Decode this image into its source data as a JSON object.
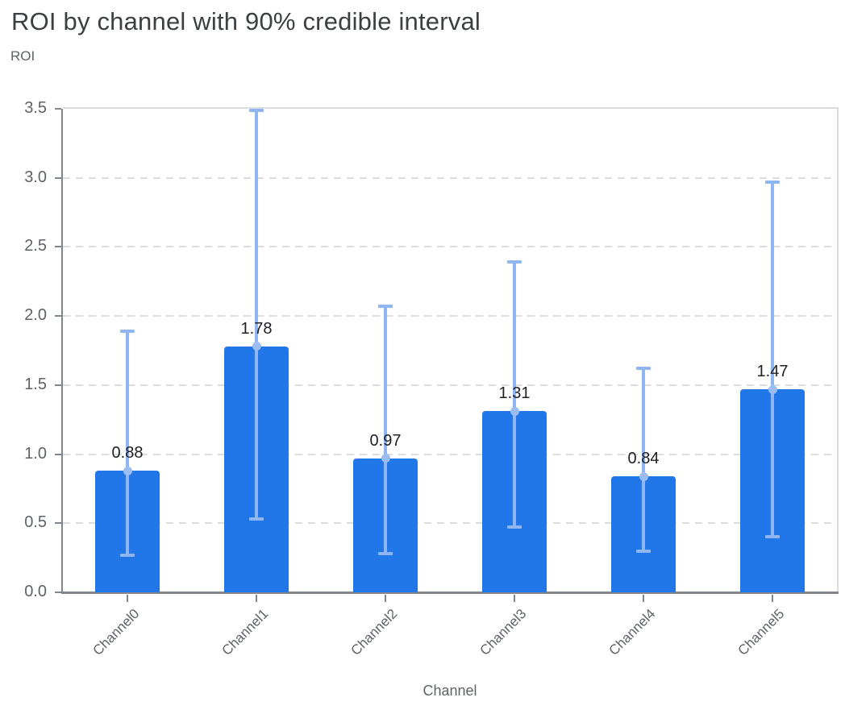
{
  "chart_data": {
    "type": "bar",
    "title": "ROI by channel with 90% credible interval",
    "ylabel": "ROI",
    "xlabel": "Channel",
    "categories": [
      "Channel0",
      "Channel1",
      "Channel2",
      "Channel3",
      "Channel4",
      "Channel5"
    ],
    "series": [
      {
        "name": "ROI",
        "values": [
          0.88,
          1.78,
          0.97,
          1.31,
          0.84,
          1.47
        ]
      }
    ],
    "value_labels": [
      "0.88",
      "1.78",
      "0.97",
      "1.31",
      "0.84",
      "1.47"
    ],
    "error_bars": {
      "label": "90% credible interval",
      "low": [
        0.27,
        0.53,
        0.28,
        0.47,
        0.3,
        0.4
      ],
      "high": [
        1.89,
        3.49,
        2.07,
        2.39,
        1.62,
        2.97
      ]
    },
    "ylim": [
      0,
      3.5
    ],
    "yticks": [
      0.0,
      0.5,
      1.0,
      1.5,
      2.0,
      2.5,
      3.0,
      3.5
    ],
    "ytick_labels": [
      "0.0",
      "0.5",
      "1.0",
      "1.5",
      "2.0",
      "2.5",
      "3.0",
      "3.5"
    ],
    "grid": "horizontal-dashed",
    "legend": "none",
    "colors": {
      "bar": "#2176e8",
      "whisker": "#8fb5f3",
      "marker": "#9bbdf4",
      "gridline": "#dadce0",
      "axis_line": "#80868b",
      "chart_border": "#dadce0",
      "title_text": "#3c4043",
      "tick_text": "#5f6368",
      "value_label_text": "#202124"
    }
  }
}
